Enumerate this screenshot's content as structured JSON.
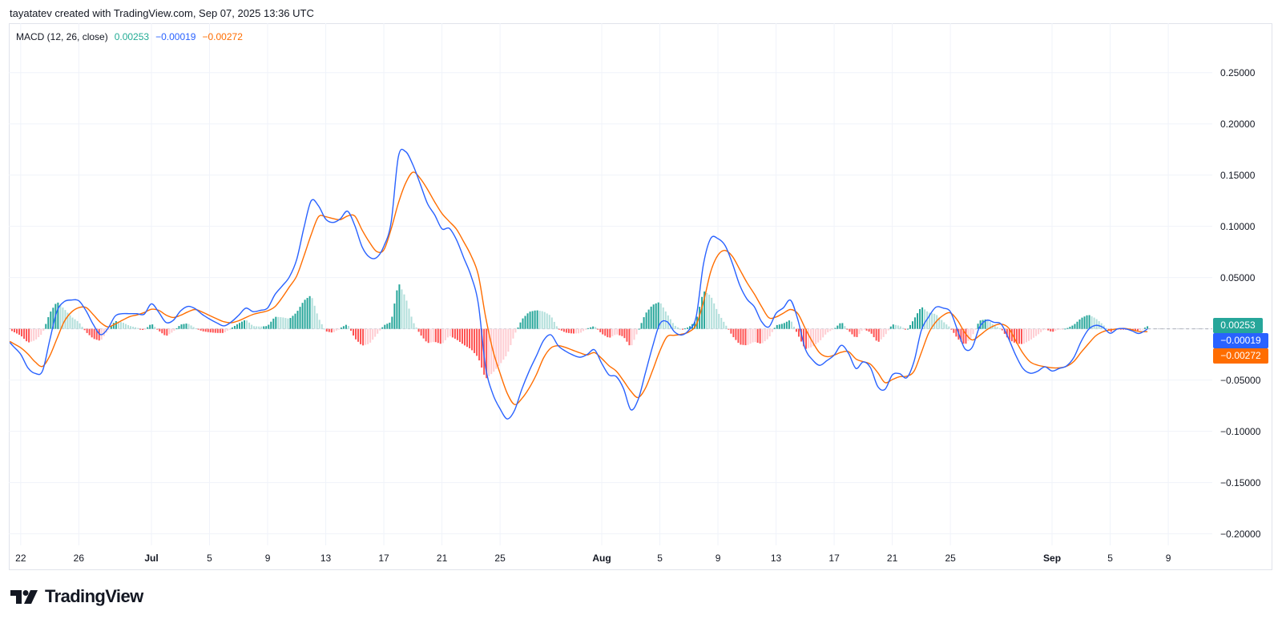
{
  "header": {
    "attribution": "tayatatev created with TradingView.com, Sep 07, 2025 13:36 UTC"
  },
  "legend": {
    "indicator": "MACD (12, 26, close)",
    "histogram_value": "0.00253",
    "macd_value": "−0.00019",
    "signal_value": "−0.00272"
  },
  "value_badges": {
    "histogram": "0.00253",
    "macd": "−0.00019",
    "signal": "−0.00272"
  },
  "footer": {
    "logo_text": "TradingView"
  },
  "colors": {
    "macd": "#2962ff",
    "signal": "#ff6d00",
    "hist_pos_rising": "#26a69a",
    "hist_pos_falling": "#b2dfdb",
    "hist_neg_falling": "#ff5252",
    "hist_neg_rising": "#ffcdd2",
    "hist_value_text": "#22ab94",
    "hist_badge": "#26a69a",
    "grid": "#f0f3fa",
    "zero_line": "#c3c6ce"
  },
  "chart_data": {
    "type": "line",
    "title": "MACD (12, 26, close)",
    "xlabel": "",
    "ylabel": "",
    "grid": true,
    "legend_position": "top-left",
    "xlim": [
      "2025-06-21T04:22",
      "2025-09-12T00:43"
    ],
    "ylim": [
      -0.2112,
      0.2982
    ],
    "ygrid": [
      0.25,
      0.2,
      0.15,
      0.1,
      0.05,
      0,
      -0.05,
      -0.1,
      -0.15,
      -0.2
    ],
    "yticks": [
      {
        "value": 0.25,
        "label": "0.25000"
      },
      {
        "value": 0.2,
        "label": "0.20000"
      },
      {
        "value": 0.15,
        "label": "0.15000"
      },
      {
        "value": 0.1,
        "label": "0.10000"
      },
      {
        "value": 0.05,
        "label": "0.05000"
      },
      {
        "value": -0.05,
        "label": "−0.05000"
      },
      {
        "value": -0.1,
        "label": "−0.10000"
      },
      {
        "value": -0.15,
        "label": "−0.15000"
      },
      {
        "value": -0.2,
        "label": "−0.20000"
      }
    ],
    "xticks": [
      {
        "date": "2025-06-22T00:00",
        "label": "22",
        "bold": false
      },
      {
        "date": "2025-06-26T00:00",
        "label": "26",
        "bold": false
      },
      {
        "date": "2025-07-01T00:00",
        "label": "Jul",
        "bold": true
      },
      {
        "date": "2025-07-05T00:00",
        "label": "5",
        "bold": false
      },
      {
        "date": "2025-07-09T00:00",
        "label": "9",
        "bold": false
      },
      {
        "date": "2025-07-13T00:00",
        "label": "13",
        "bold": false
      },
      {
        "date": "2025-07-17T00:00",
        "label": "17",
        "bold": false
      },
      {
        "date": "2025-07-21T00:00",
        "label": "21",
        "bold": false
      },
      {
        "date": "2025-07-25T00:00",
        "label": "25",
        "bold": false
      },
      {
        "date": "2025-08-01T00:00",
        "label": "Aug",
        "bold": true
      },
      {
        "date": "2025-08-05T00:00",
        "label": "5",
        "bold": false
      },
      {
        "date": "2025-08-09T00:00",
        "label": "9",
        "bold": false
      },
      {
        "date": "2025-08-13T00:00",
        "label": "13",
        "bold": false
      },
      {
        "date": "2025-08-17T00:00",
        "label": "17",
        "bold": false
      },
      {
        "date": "2025-08-21T00:00",
        "label": "21",
        "bold": false
      },
      {
        "date": "2025-08-25T00:00",
        "label": "25",
        "bold": false
      },
      {
        "date": "2025-09-01T00:00",
        "label": "Sep",
        "bold": true
      },
      {
        "date": "2025-09-05T00:00",
        "label": "5",
        "bold": false
      },
      {
        "date": "2025-09-09T00:00",
        "label": "9",
        "bold": false
      }
    ],
    "last_values": {
      "histogram": 0.00253,
      "macd": -0.00019,
      "signal": -0.00272
    },
    "x": [
      "2025-06-21T06:00",
      "2025-06-21T12:00",
      "2025-06-22T00:00",
      "2025-06-22T12:00",
      "2025-06-23T00:00",
      "2025-06-23T12:00",
      "2025-06-24T00:00",
      "2025-06-24T12:00",
      "2025-06-25T00:00",
      "2025-06-25T12:00",
      "2025-06-26T00:00",
      "2025-06-26T12:00",
      "2025-06-27T00:00",
      "2025-06-27T12:00",
      "2025-06-28T00:00",
      "2025-06-28T12:00",
      "2025-06-29T00:00",
      "2025-06-29T12:00",
      "2025-06-30T00:00",
      "2025-06-30T12:00",
      "2025-07-01T00:00",
      "2025-07-01T12:00",
      "2025-07-02T00:00",
      "2025-07-02T12:00",
      "2025-07-03T00:00",
      "2025-07-03T12:00",
      "2025-07-04T00:00",
      "2025-07-04T12:00",
      "2025-07-05T00:00",
      "2025-07-05T12:00",
      "2025-07-06T00:00",
      "2025-07-06T12:00",
      "2025-07-07T00:00",
      "2025-07-07T12:00",
      "2025-07-08T00:00",
      "2025-07-08T12:00",
      "2025-07-09T00:00",
      "2025-07-09T12:00",
      "2025-07-10T00:00",
      "2025-07-10T12:00",
      "2025-07-11T00:00",
      "2025-07-11T12:00",
      "2025-07-12T00:00",
      "2025-07-12T12:00",
      "2025-07-13T00:00",
      "2025-07-13T12:00",
      "2025-07-14T00:00",
      "2025-07-14T12:00",
      "2025-07-15T00:00",
      "2025-07-15T12:00",
      "2025-07-16T00:00",
      "2025-07-16T12:00",
      "2025-07-17T00:00",
      "2025-07-17T12:00",
      "2025-07-18T00:00",
      "2025-07-18T12:00",
      "2025-07-19T00:00",
      "2025-07-19T12:00",
      "2025-07-20T00:00",
      "2025-07-20T12:00",
      "2025-07-21T00:00",
      "2025-07-21T12:00",
      "2025-07-22T00:00",
      "2025-07-22T12:00",
      "2025-07-23T00:00",
      "2025-07-23T12:00",
      "2025-07-24T00:00",
      "2025-07-24T12:00",
      "2025-07-25T00:00",
      "2025-07-25T12:00",
      "2025-07-26T00:00",
      "2025-07-26T12:00",
      "2025-07-27T00:00",
      "2025-07-27T12:00",
      "2025-07-28T00:00",
      "2025-07-28T12:00",
      "2025-07-29T00:00",
      "2025-07-29T12:00",
      "2025-07-30T00:00",
      "2025-07-30T12:00",
      "2025-07-31T00:00",
      "2025-07-31T12:00",
      "2025-08-01T00:00",
      "2025-08-01T12:00",
      "2025-08-02T00:00",
      "2025-08-02T12:00",
      "2025-08-03T00:00",
      "2025-08-03T12:00",
      "2025-08-04T00:00",
      "2025-08-04T12:00",
      "2025-08-05T00:00",
      "2025-08-05T12:00",
      "2025-08-06T00:00",
      "2025-08-06T12:00",
      "2025-08-07T00:00",
      "2025-08-07T12:00",
      "2025-08-08T00:00",
      "2025-08-08T12:00",
      "2025-08-09T00:00",
      "2025-08-09T12:00",
      "2025-08-10T00:00",
      "2025-08-10T12:00",
      "2025-08-11T00:00",
      "2025-08-11T12:00",
      "2025-08-12T00:00",
      "2025-08-12T12:00",
      "2025-08-13T00:00",
      "2025-08-13T12:00",
      "2025-08-14T00:00",
      "2025-08-14T12:00",
      "2025-08-15T00:00",
      "2025-08-15T12:00",
      "2025-08-16T00:00",
      "2025-08-16T12:00",
      "2025-08-17T00:00",
      "2025-08-17T12:00",
      "2025-08-18T00:00",
      "2025-08-18T12:00",
      "2025-08-19T00:00",
      "2025-08-19T12:00",
      "2025-08-20T00:00",
      "2025-08-20T12:00",
      "2025-08-21T00:00",
      "2025-08-21T12:00",
      "2025-08-22T00:00",
      "2025-08-22T12:00",
      "2025-08-23T00:00",
      "2025-08-23T12:00",
      "2025-08-24T00:00",
      "2025-08-24T12:00",
      "2025-08-25T00:00",
      "2025-08-25T12:00",
      "2025-08-26T00:00",
      "2025-08-26T12:00",
      "2025-08-27T00:00",
      "2025-08-27T12:00",
      "2025-08-28T00:00",
      "2025-08-28T12:00",
      "2025-08-29T00:00",
      "2025-08-29T12:00",
      "2025-08-30T00:00",
      "2025-08-30T12:00",
      "2025-08-31T00:00",
      "2025-08-31T12:00",
      "2025-09-01T00:00",
      "2025-09-01T12:00",
      "2025-09-02T00:00",
      "2025-09-02T12:00",
      "2025-09-03T00:00",
      "2025-09-03T12:00",
      "2025-09-04T00:00",
      "2025-09-04T12:00",
      "2025-09-05T00:00",
      "2025-09-05T12:00",
      "2025-09-06T00:00",
      "2025-09-06T12:00",
      "2025-09-07T00:00",
      "2025-09-07T13:36"
    ],
    "series": [
      {
        "name": "MACD",
        "type": "line",
        "color": "#2962ff",
        "values": [
          -0.0132,
          -0.0172,
          -0.0248,
          -0.0381,
          -0.0435,
          -0.0411,
          -0.011,
          0.0172,
          0.0266,
          0.0281,
          0.0274,
          0.0176,
          0.0042,
          -0.0056,
          0.0003,
          0.0124,
          0.0148,
          0.0148,
          0.0148,
          0.0143,
          0.0244,
          0.0163,
          0.0063,
          0.0083,
          0.0174,
          0.0219,
          0.0198,
          0.0141,
          0.0096,
          0.0058,
          0.0029,
          0.0068,
          0.0132,
          0.0202,
          0.0168,
          0.0181,
          0.0204,
          0.0334,
          0.0418,
          0.0508,
          0.0677,
          0.0988,
          0.125,
          0.12,
          0.107,
          0.1038,
          0.1073,
          0.1148,
          0.1008,
          0.0801,
          0.0701,
          0.0695,
          0.0806,
          0.104,
          0.168,
          0.1729,
          0.16,
          0.1415,
          0.1223,
          0.1112,
          0.0976,
          0.0981,
          0.0869,
          0.0693,
          0.0518,
          0.0247,
          -0.0369,
          -0.0635,
          -0.078,
          -0.0879,
          -0.0794,
          -0.0588,
          -0.0413,
          -0.0264,
          -0.0112,
          -0.0058,
          -0.0164,
          -0.0217,
          -0.0254,
          -0.0277,
          -0.025,
          -0.0204,
          -0.0337,
          -0.045,
          -0.0465,
          -0.0583,
          -0.0788,
          -0.0692,
          -0.0433,
          -0.0172,
          0.0048,
          0.007,
          -0.0028,
          -0.006,
          -0.0012,
          0.012,
          0.063,
          0.0882,
          0.088,
          0.0811,
          0.0636,
          0.0426,
          0.029,
          0.0216,
          0.0071,
          0.0019,
          0.0151,
          0.0205,
          0.0279,
          0.009,
          -0.0191,
          -0.0301,
          -0.0356,
          -0.031,
          -0.0256,
          -0.016,
          -0.0242,
          -0.0386,
          -0.0322,
          -0.0379,
          -0.0562,
          -0.059,
          -0.045,
          -0.0437,
          -0.0476,
          -0.0317,
          -0.0015,
          0.0116,
          0.0211,
          0.0203,
          0.0167,
          -0.0016,
          -0.0194,
          -0.018,
          0.0015,
          0.0084,
          0.0064,
          0.0046,
          -0.0093,
          -0.0258,
          -0.0387,
          -0.0433,
          -0.0414,
          -0.037,
          -0.0411,
          -0.0386,
          -0.0361,
          -0.0279,
          -0.0124,
          -0.0007,
          0.0034,
          0.0015,
          -0.0043,
          -0.0001,
          0.0002,
          -0.0019,
          -0.0045,
          -0.00019
        ]
      },
      {
        "name": "Signal",
        "type": "line",
        "color": "#ff6d00",
        "values": [
          -0.0122,
          -0.0143,
          -0.0184,
          -0.0246,
          -0.0323,
          -0.0366,
          -0.0264,
          -0.0094,
          0.0072,
          0.0164,
          0.0207,
          0.0208,
          0.0138,
          0.0062,
          0.0019,
          0.0047,
          0.0084,
          0.0119,
          0.0136,
          0.0159,
          0.0191,
          0.0181,
          0.0135,
          0.0111,
          0.0132,
          0.0165,
          0.0189,
          0.0164,
          0.013,
          0.0098,
          0.0069,
          0.006,
          0.0079,
          0.0111,
          0.0141,
          0.0159,
          0.0176,
          0.0216,
          0.0305,
          0.041,
          0.0516,
          0.0711,
          0.092,
          0.1094,
          0.1094,
          0.1076,
          0.1065,
          0.1101,
          0.1101,
          0.0965,
          0.0847,
          0.0755,
          0.0771,
          0.0973,
          0.1227,
          0.1422,
          0.1528,
          0.1469,
          0.1362,
          0.1238,
          0.1126,
          0.1048,
          0.0972,
          0.0849,
          0.0716,
          0.0527,
          0.012,
          -0.0206,
          -0.0433,
          -0.0631,
          -0.0738,
          -0.068,
          -0.0579,
          -0.0446,
          -0.0282,
          -0.0186,
          -0.0164,
          -0.0181,
          -0.0208,
          -0.0234,
          -0.0254,
          -0.0232,
          -0.0289,
          -0.036,
          -0.0413,
          -0.0507,
          -0.0607,
          -0.067,
          -0.0581,
          -0.0406,
          -0.0216,
          -0.0076,
          -0.0063,
          -0.0052,
          -0.003,
          0.004,
          0.026,
          0.0557,
          0.0719,
          0.0765,
          0.0706,
          0.0579,
          0.0451,
          0.0341,
          0.0218,
          0.0109,
          0.0116,
          0.0153,
          0.0189,
          0.0148,
          0.0007,
          -0.0125,
          -0.0234,
          -0.0271,
          -0.0256,
          -0.0228,
          -0.0223,
          -0.0294,
          -0.032,
          -0.0345,
          -0.0427,
          -0.0524,
          -0.0495,
          -0.0467,
          -0.0462,
          -0.0413,
          -0.0232,
          -0.0043,
          0.0067,
          0.0131,
          0.0156,
          0.0081,
          -0.0038,
          -0.0108,
          -0.0066,
          -0.001,
          0.003,
          0.0047,
          0.001,
          -0.0116,
          -0.0238,
          -0.0323,
          -0.0354,
          -0.0369,
          -0.038,
          -0.038,
          -0.0365,
          -0.0318,
          -0.0229,
          -0.0146,
          -0.0069,
          -0.0028,
          -0.001,
          0.0,
          0.0004,
          -0.0009,
          -0.0026,
          -0.00272
        ]
      },
      {
        "name": "Histogram",
        "type": "bar",
        "values": [
          -0.001,
          -0.0029,
          -0.0064,
          -0.0135,
          -0.0112,
          -0.0045,
          0.0154,
          0.0266,
          0.0194,
          0.0117,
          0.0067,
          -0.0032,
          -0.0096,
          -0.0118,
          -0.0016,
          0.0077,
          0.0064,
          0.0029,
          0.0012,
          -0.0016,
          0.0053,
          -0.0018,
          -0.0072,
          -0.0028,
          0.0042,
          0.0054,
          0.0009,
          -0.0023,
          -0.0034,
          -0.004,
          -0.004,
          0.0008,
          0.0053,
          0.0091,
          0.0027,
          0.0022,
          0.0028,
          0.0118,
          0.0113,
          0.0098,
          0.0161,
          0.0277,
          0.033,
          0.0106,
          -0.0024,
          -0.0038,
          0.0008,
          0.0047,
          -0.0093,
          -0.0164,
          -0.0146,
          -0.006,
          0.0035,
          0.0067,
          0.0453,
          0.0307,
          0.0072,
          -0.0054,
          -0.0139,
          -0.0126,
          -0.015,
          -0.0067,
          -0.0103,
          -0.0156,
          -0.0198,
          -0.028,
          -0.0489,
          -0.0429,
          -0.0347,
          -0.0248,
          -0.0056,
          0.0092,
          0.0166,
          0.0182,
          0.017,
          0.0128,
          0.0,
          -0.0036,
          -0.0046,
          -0.0043,
          0.0004,
          0.0028,
          -0.0048,
          -0.009,
          -0.0052,
          -0.0076,
          -0.0181,
          -0.0022,
          0.0148,
          0.0234,
          0.0264,
          0.0146,
          0.0035,
          -0.0008,
          0.0018,
          0.008,
          0.037,
          0.0325,
          0.0161,
          0.0046,
          -0.007,
          -0.0153,
          -0.0161,
          -0.0125,
          -0.0147,
          -0.009,
          0.0035,
          0.0052,
          0.009,
          -0.0058,
          -0.0198,
          -0.0176,
          -0.0122,
          -0.0039,
          0.0,
          0.0068,
          -0.0019,
          -0.0092,
          -0.0002,
          -0.0034,
          -0.0135,
          -0.0066,
          0.0045,
          0.003,
          -0.0014,
          0.0096,
          0.0217,
          0.0159,
          0.0144,
          0.0072,
          0.0011,
          -0.0097,
          -0.0156,
          -0.0072,
          0.0081,
          0.0094,
          0.0034,
          -0.0001,
          -0.0103,
          -0.0142,
          -0.0149,
          -0.011,
          -0.006,
          -0.0001,
          -0.0031,
          -0.0006,
          0.0004,
          0.0039,
          0.0105,
          0.0139,
          0.0103,
          0.0043,
          -0.0033,
          -0.0001,
          -0.0002,
          -0.001,
          -0.0019,
          0.00253
        ]
      }
    ]
  }
}
